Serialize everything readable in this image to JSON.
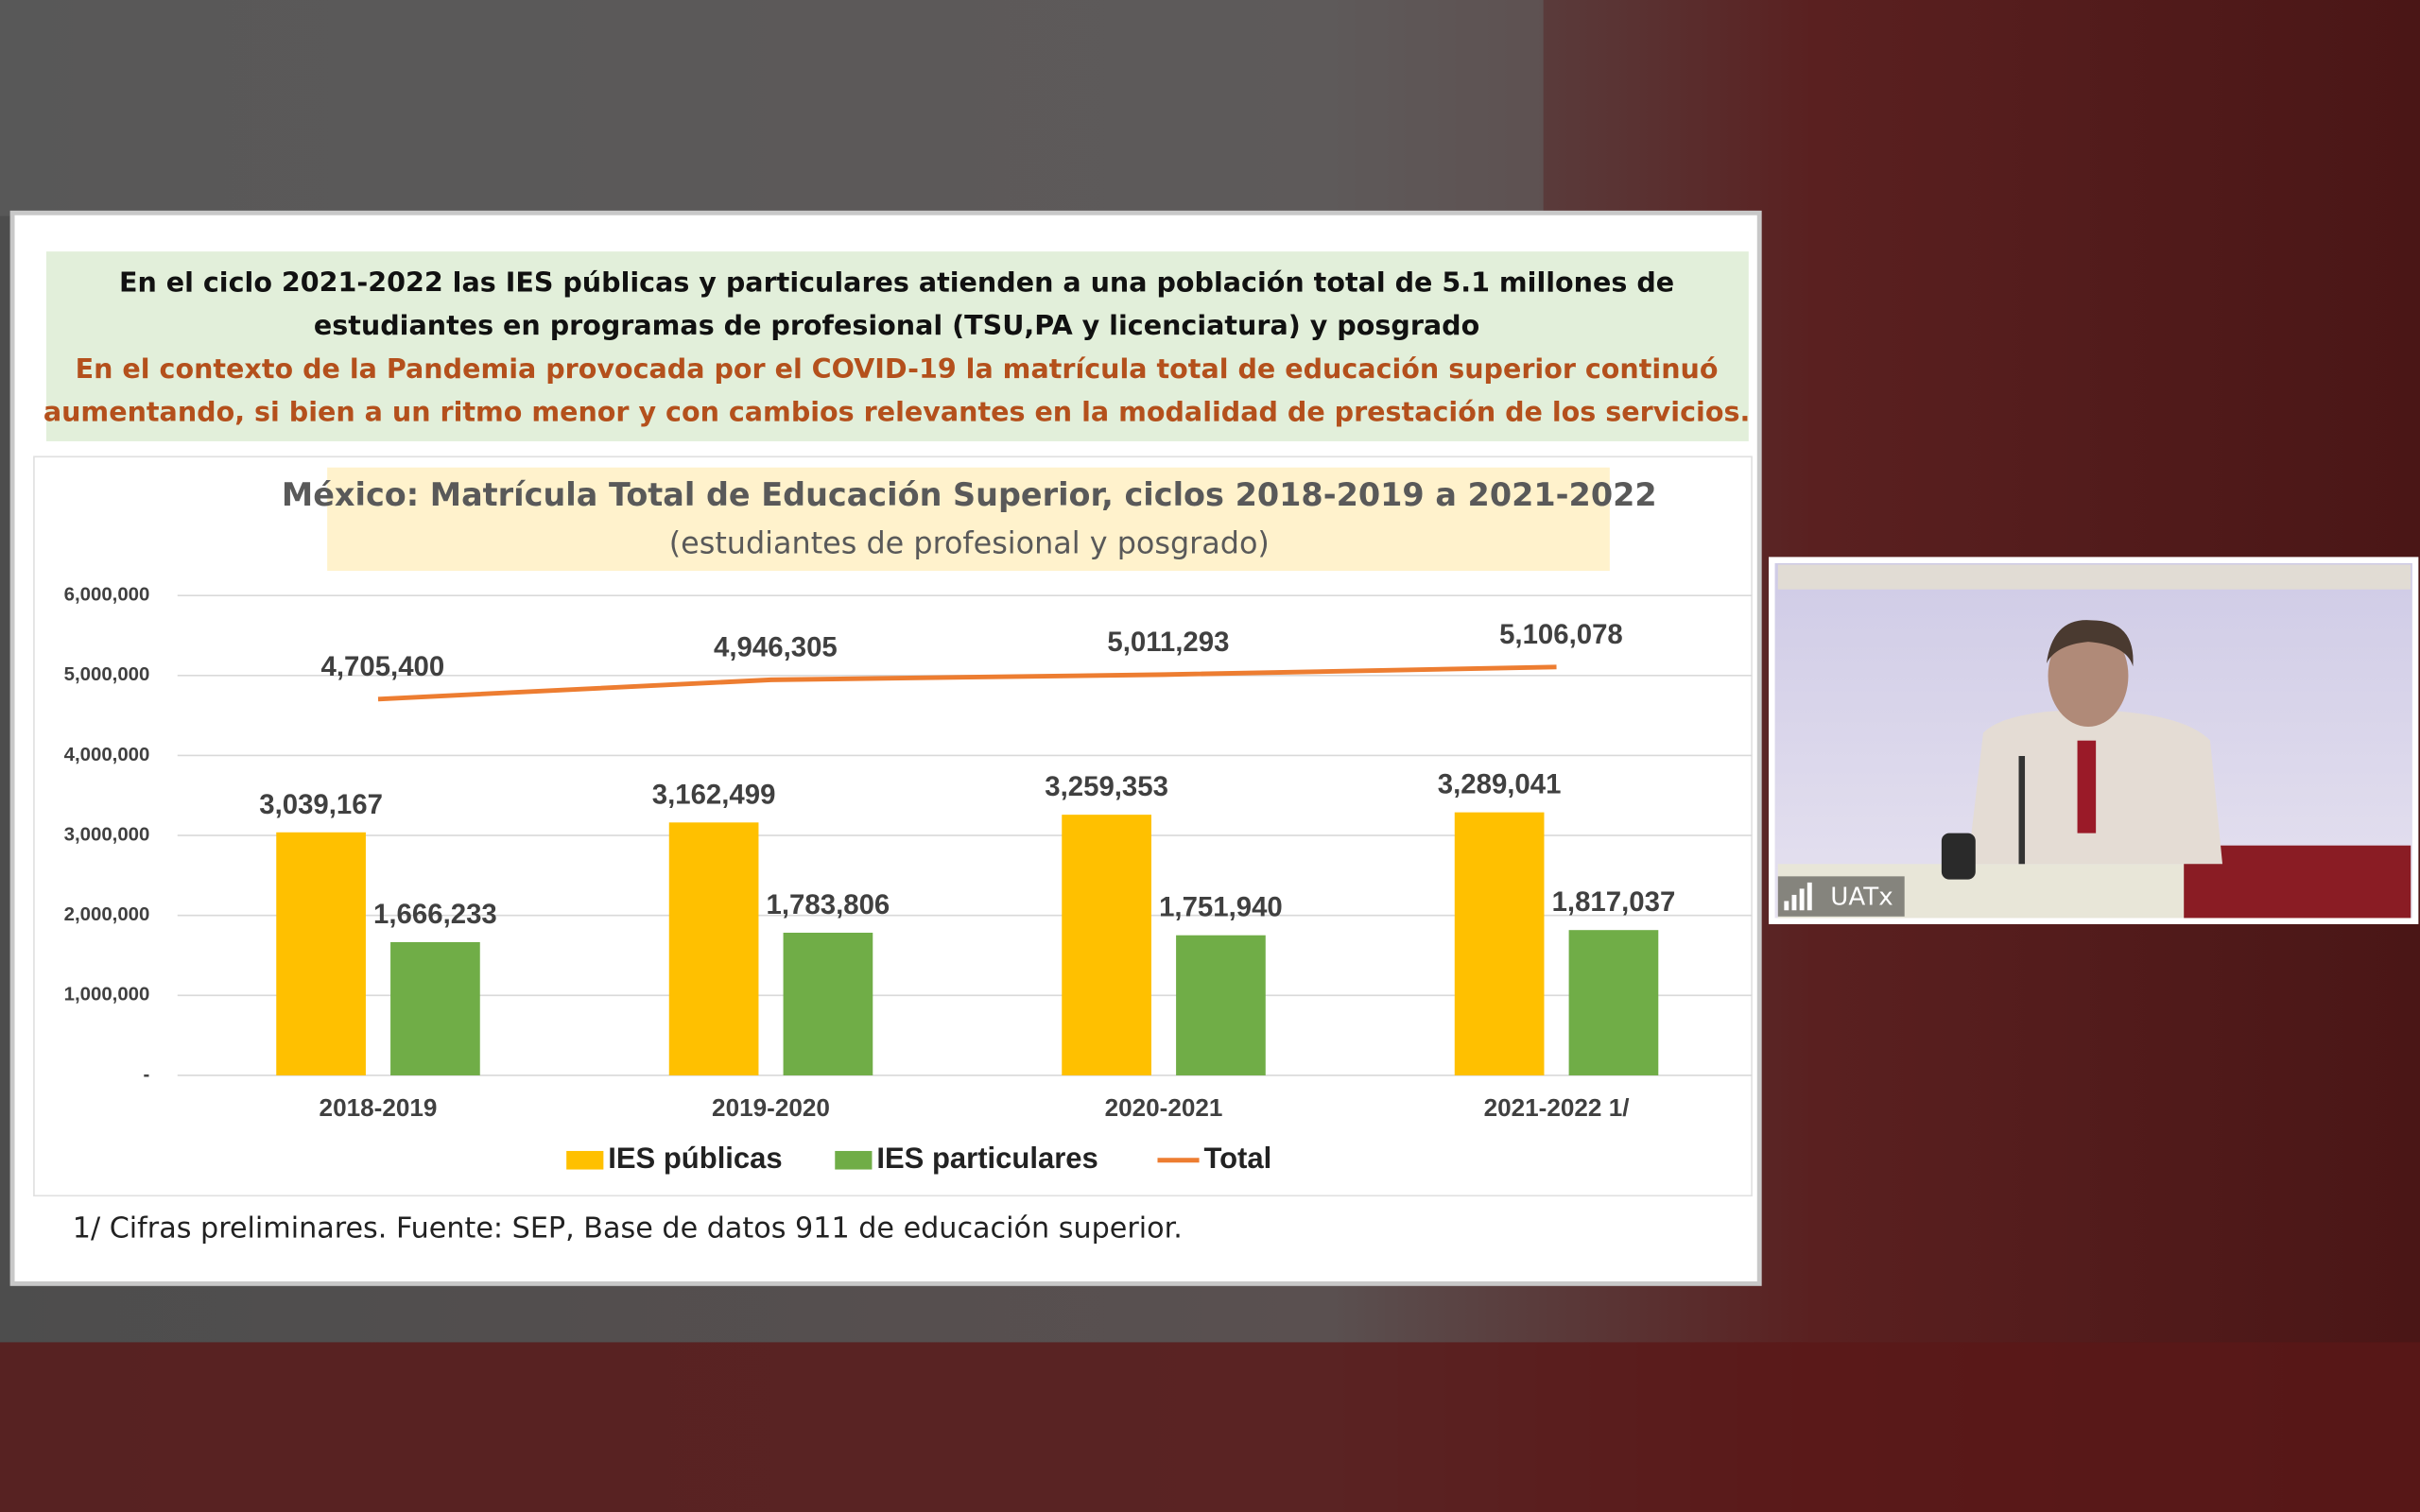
{
  "slide": {
    "headline": [
      "En el ciclo 2021-2022 las IES públicas y particulares atienden a una población total de 5.1 millones de",
      "estudiantes en programas de profesional (TSU,PA y licenciatura) y posgrado"
    ],
    "context": [
      "En el contexto de la Pandemia provocada por el COVID-19 la matrícula total de educación superior continuó",
      "aumentando, si bien a un ritmo menor y con cambios relevantes en la modalidad de prestación de los servicios."
    ],
    "footnote": "1/ Cifras preliminares. Fuente: SEP, Base de datos 911 de educación superior."
  },
  "chart_data": {
    "type": "bar",
    "title": "México: Matrícula Total de Educación Superior, ciclos 2018-2019 a 2021-2022",
    "subtitle": "(estudiantes de profesional y posgrado)",
    "categories": [
      "2018-2019",
      "2019-2020",
      "2020-2021",
      "2021-2022 1/"
    ],
    "series": [
      {
        "name": "IES públicas",
        "type": "bar",
        "color": "#ffc000",
        "values": [
          3039167,
          3162499,
          3259353,
          3289041
        ],
        "value_labels": [
          "3,039,167",
          "3,162,499",
          "3,259,353",
          "3,289,041"
        ]
      },
      {
        "name": "IES particulares",
        "type": "bar",
        "color": "#70ad47",
        "values": [
          1666233,
          1783806,
          1751940,
          1817037
        ],
        "value_labels": [
          "1,666,233",
          "1,783,806",
          "1,751,940",
          "1,817,037"
        ]
      },
      {
        "name": "Total",
        "type": "line",
        "color": "#ed7d31",
        "values": [
          4705400,
          4946305,
          5011293,
          5106078
        ],
        "value_labels": [
          "4,705,400",
          "4,946,305",
          "5,011,293",
          "5,106,078"
        ]
      }
    ],
    "ylim": [
      0,
      6000000
    ],
    "yticks": [
      {
        "value": 0,
        "label": "-"
      },
      {
        "value": 1000000,
        "label": "1,000,000"
      },
      {
        "value": 2000000,
        "label": "2,000,000"
      },
      {
        "value": 3000000,
        "label": "3,000,000"
      },
      {
        "value": 4000000,
        "label": "4,000,000"
      },
      {
        "value": 5000000,
        "label": "5,000,000"
      },
      {
        "value": 6000000,
        "label": "6,000,000"
      }
    ],
    "grid": true,
    "legend": "bottom"
  },
  "video": {
    "label": "UATx"
  }
}
